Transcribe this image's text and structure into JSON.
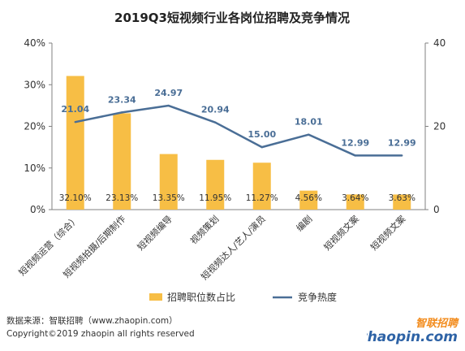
{
  "colors": {
    "bar": "#F7BE45",
    "line": "#4A6E96",
    "axis": "#808080",
    "grid": "#E6E6E6",
    "logo_orange": "#F28C1E",
    "logo_blue": "#2E63A6"
  },
  "chart_data": {
    "type": "bar",
    "title": "2019Q3短视频行业各岗位招聘及竞争情况",
    "categories": [
      "短视频运营（综合）",
      "短视频拍摄/后期制作",
      "短视频编导",
      "视频策划",
      "短视频达人/艺人/演员",
      "编剧",
      "短视频文案",
      "短视频文案"
    ],
    "series": [
      {
        "name": "招聘职位数占比",
        "type": "bar",
        "axis": "left",
        "values": [
          32.1,
          23.13,
          13.35,
          11.95,
          11.27,
          4.56,
          3.64,
          3.63
        ],
        "labels": [
          "32.10%",
          "23.13%",
          "13.35%",
          "11.95%",
          "11.27%",
          "4.56%",
          "3.64%",
          "3.63%"
        ]
      },
      {
        "name": "竞争热度",
        "type": "line",
        "axis": "right",
        "values": [
          21.04,
          23.34,
          24.97,
          20.94,
          15.0,
          18.01,
          12.99,
          12.99
        ],
        "labels": [
          "21.04",
          "23.34",
          "24.97",
          "20.94",
          "15.00",
          "18.01",
          "12.99",
          "12.99"
        ]
      }
    ],
    "y_left": {
      "lim": [
        0,
        40
      ],
      "ticks": [
        "0%",
        "10%",
        "20%",
        "30%",
        "40%"
      ]
    },
    "y_right": {
      "lim": [
        0,
        40
      ],
      "ticks": [
        "0",
        "20",
        "40"
      ]
    },
    "legend": {
      "placement": "bottom"
    },
    "grid": false
  },
  "footer": {
    "source": "数据来源：智联招聘（www.zhaopin.com）",
    "copyright": "Copyright©2019 zhaopin all rights reserved"
  },
  "logo": {
    "name_cn": "智联招聘",
    "name_en": "zhaopin.com"
  }
}
